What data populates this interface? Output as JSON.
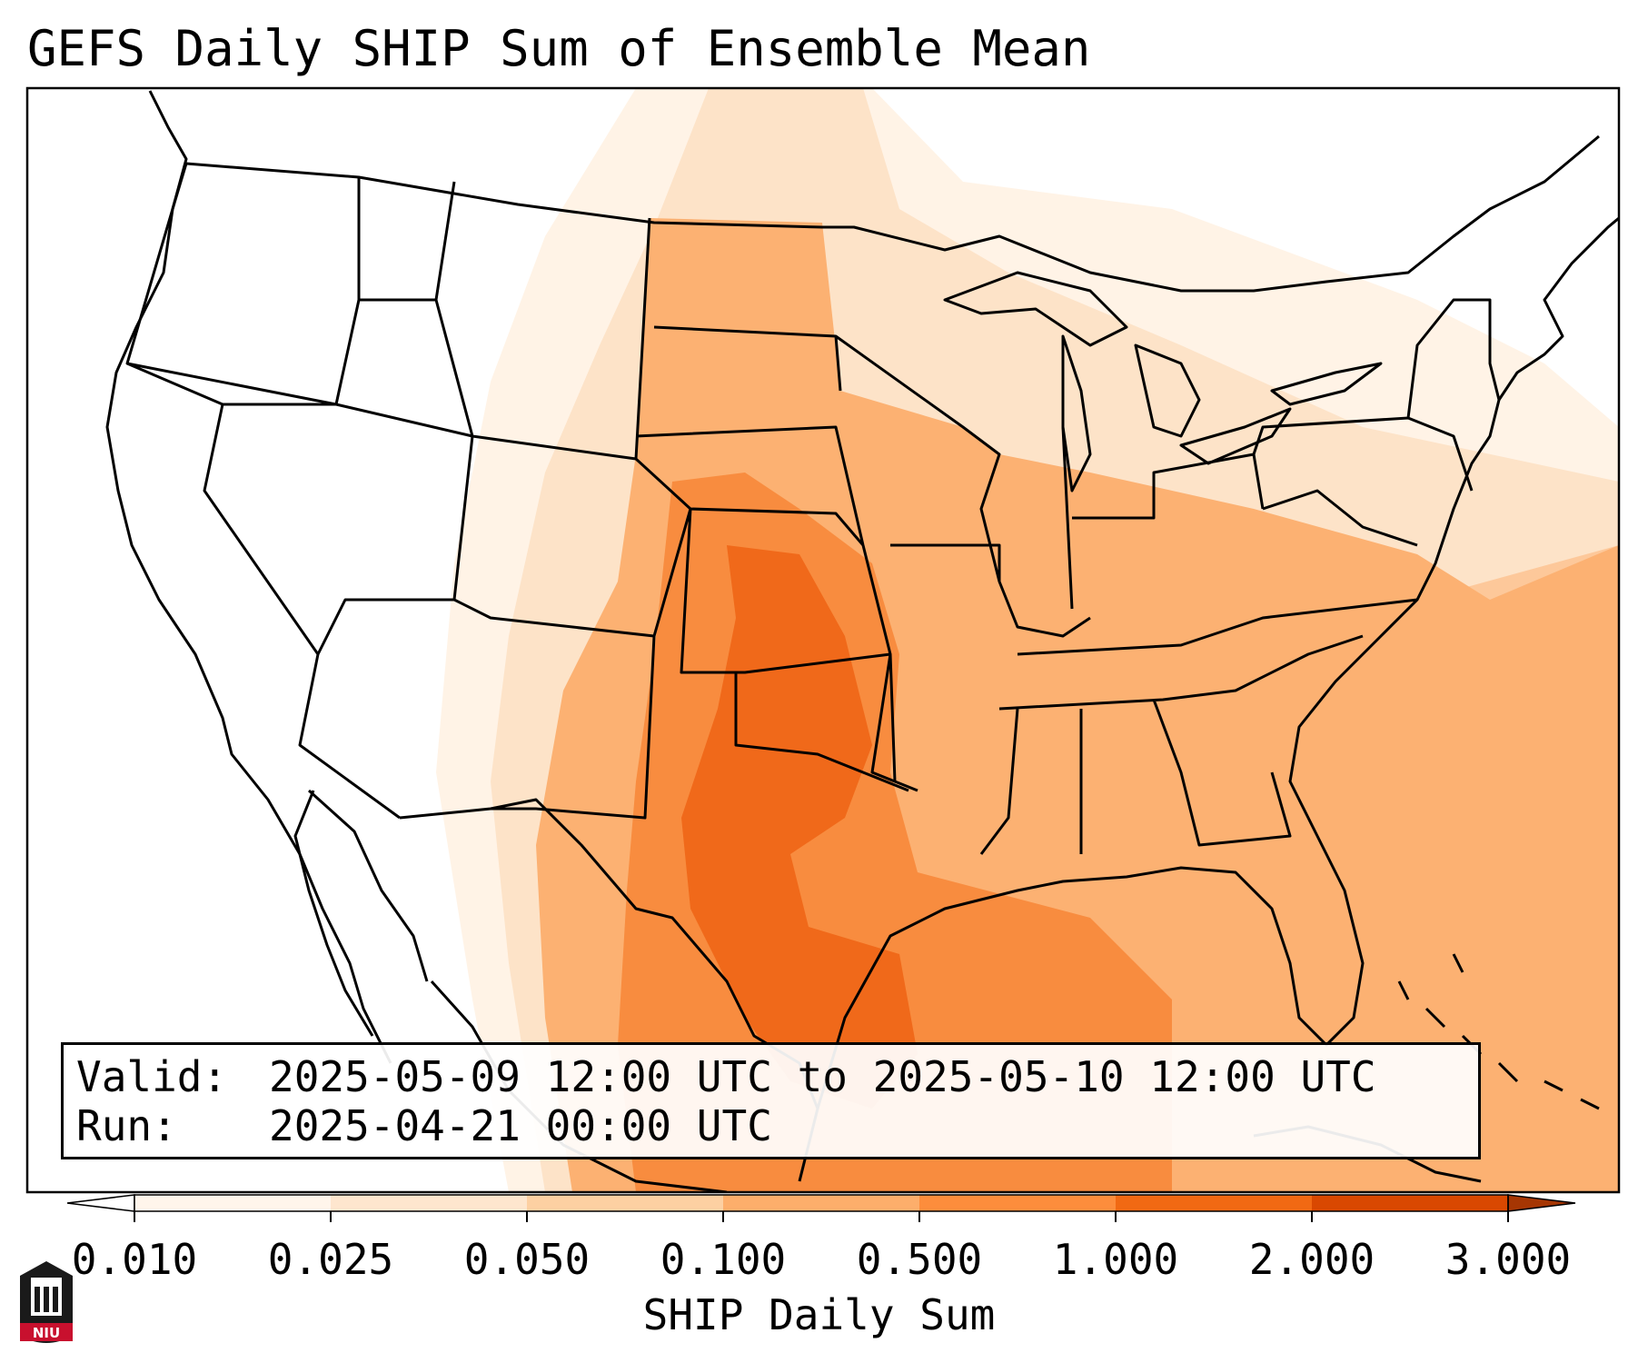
{
  "title": "GEFS Daily SHIP Sum of Ensemble Mean",
  "valid_label": "Valid:",
  "valid_value": "2025-05-09 12:00 UTC to 2025-05-10 12:00 UTC",
  "run_label": "Run:",
  "run_value": "2025-04-21 00:00 UTC",
  "colorbar": {
    "label": "SHIP Daily Sum",
    "ticks": [
      "0.010",
      "0.025",
      "0.050",
      "0.100",
      "0.500",
      "1.000",
      "2.000",
      "3.000"
    ],
    "colors": [
      "#fff5eb",
      "#fee6ce",
      "#fdd0a2",
      "#fdae6b",
      "#fd8d3c",
      "#f16913",
      "#d94801",
      "#a63603"
    ]
  },
  "logo": {
    "text": "NIU"
  }
}
